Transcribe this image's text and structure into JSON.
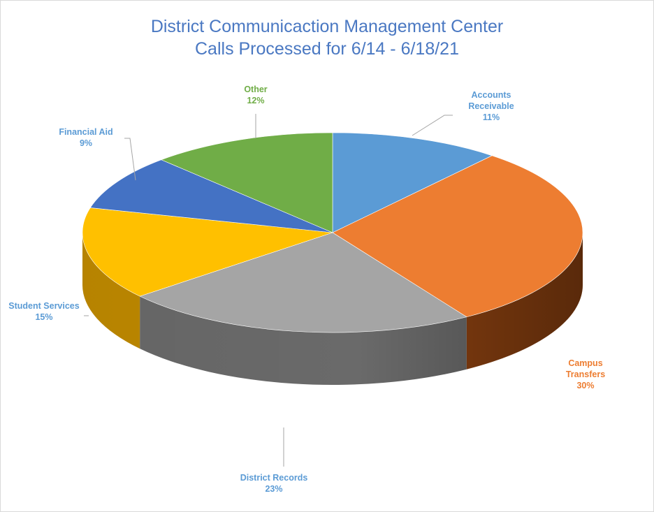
{
  "chart_data": {
    "type": "pie",
    "title": "District Communicaction Management Center",
    "subtitle": "Calls Processed for 6/14 - 6/18/21",
    "series": [
      {
        "slices": [
          {
            "label": "Accounts Receivable",
            "label_lines": [
              "Accounts",
              "Receivable"
            ],
            "value": 11,
            "pct_text": "11%",
            "color": "#5b9bd5",
            "side_color": "#2e5d8c",
            "label_color": "#5b9bd5"
          },
          {
            "label": "Campus Transfers",
            "label_lines": [
              "Campus",
              "Transfers"
            ],
            "value": 30,
            "pct_text": "30%",
            "color": "#ed7d31",
            "side_color": "#8a4010",
            "label_color": "#ed7d31"
          },
          {
            "label": "District Records",
            "label_lines": [
              "District Records"
            ],
            "value": 23,
            "pct_text": "23%",
            "color": "#a5a5a5",
            "side_color": "#6a6a6a",
            "label_color": "#5b9bd5"
          },
          {
            "label": "Student Services",
            "label_lines": [
              "Student Services"
            ],
            "value": 15,
            "pct_text": "15%",
            "color": "#ffc000",
            "side_color": "#c08a00",
            "label_color": "#5b9bd5"
          },
          {
            "label": "Financial Aid",
            "label_lines": [
              "Financial Aid"
            ],
            "value": 9,
            "pct_text": "9%",
            "color": "#4472c4",
            "side_color": "#2a4a85",
            "label_color": "#5b9bd5"
          },
          {
            "label": "Other",
            "label_lines": [
              "Other"
            ],
            "value": 12,
            "pct_text": "12%",
            "color": "#70ad47",
            "side_color": "#46702b",
            "label_color": "#70ad47"
          }
        ]
      }
    ],
    "start_angle_deg": 0,
    "direction": "clockwise",
    "style": "3d-pie",
    "legend": "none",
    "data_labels": "outside-with-leader-lines"
  }
}
